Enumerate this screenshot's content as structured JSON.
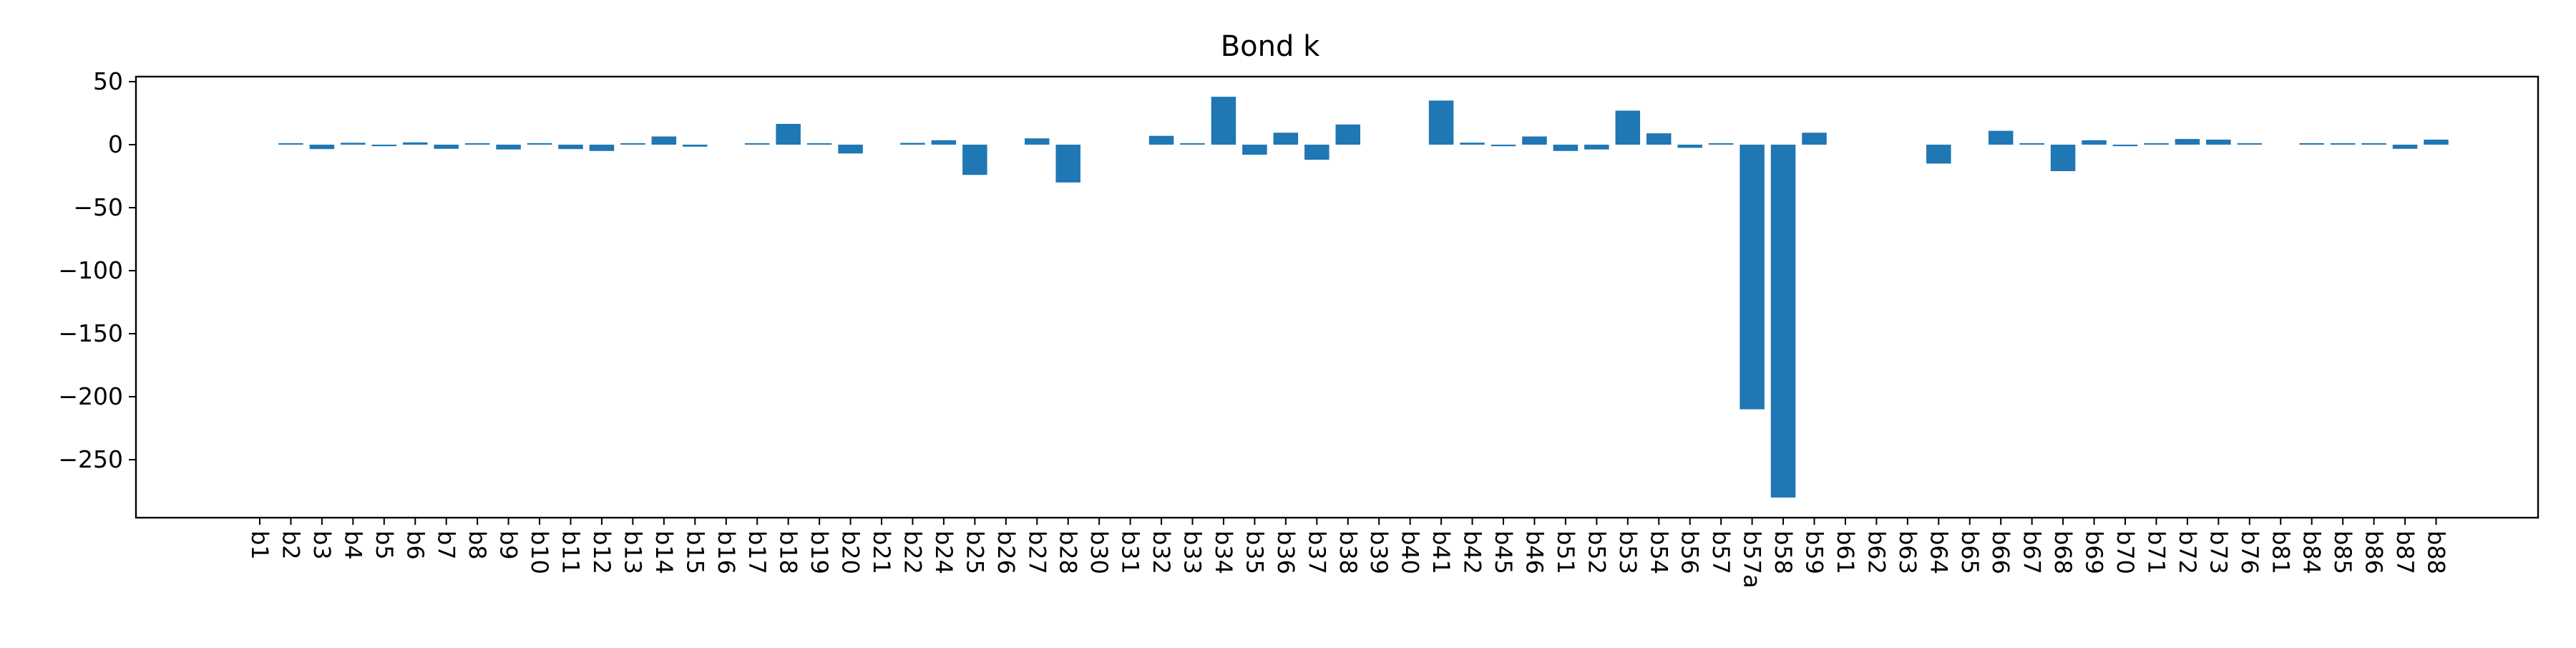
{
  "chart_data": {
    "type": "bar",
    "title": "Bond k",
    "xlabel": "",
    "ylabel": "",
    "ylim": [
      -296,
      54
    ],
    "yticks": [
      50,
      0,
      -50,
      -100,
      -150,
      -200,
      -250
    ],
    "grid": false,
    "legend": "none",
    "bar_color": "#1f77b4",
    "categories": [
      "b1",
      "b2",
      "b3",
      "b4",
      "b5",
      "b6",
      "b7",
      "b8",
      "b9",
      "b10",
      "b11",
      "b12",
      "b13",
      "b14",
      "b15",
      "b16",
      "b17",
      "b18",
      "b19",
      "b20",
      "b21",
      "b22",
      "b24",
      "b25",
      "b26",
      "b27",
      "b28",
      "b30",
      "b31",
      "b32",
      "b33",
      "b34",
      "b35",
      "b36",
      "b37",
      "b38",
      "b39",
      "b40",
      "b41",
      "b42",
      "b45",
      "b46",
      "b51",
      "b52",
      "b53",
      "b54",
      "b56",
      "b57",
      "b57a",
      "b58",
      "b59",
      "b61",
      "b62",
      "b63",
      "b64",
      "b65",
      "b66",
      "b67",
      "b68",
      "b69",
      "b70",
      "b71",
      "b72",
      "b73",
      "b76",
      "b81",
      "b84",
      "b85",
      "b86",
      "b87",
      "b88"
    ],
    "values": [
      0,
      0.8,
      -3.5,
      1.5,
      -1.2,
      1.8,
      -3.3,
      0.8,
      -3.8,
      1.2,
      -3.5,
      -5,
      0.8,
      6.5,
      -1.6,
      0,
      0.8,
      16.5,
      0.8,
      -7,
      0,
      1.4,
      3.5,
      -24,
      0,
      5,
      -30,
      0,
      0,
      7,
      0.8,
      38,
      -8,
      9.5,
      -12,
      16,
      0,
      0,
      35,
      1.6,
      -1.2,
      6.5,
      -5,
      -3.8,
      27,
      9,
      -2.5,
      0.8,
      -210,
      -280,
      9.5,
      0,
      0,
      0,
      -15,
      0,
      11,
      0.8,
      -21,
      3.5,
      -1.2,
      0.8,
      4.5,
      4,
      0.8,
      0,
      1.2,
      0.8,
      0.8,
      -3.3,
      4
    ]
  }
}
